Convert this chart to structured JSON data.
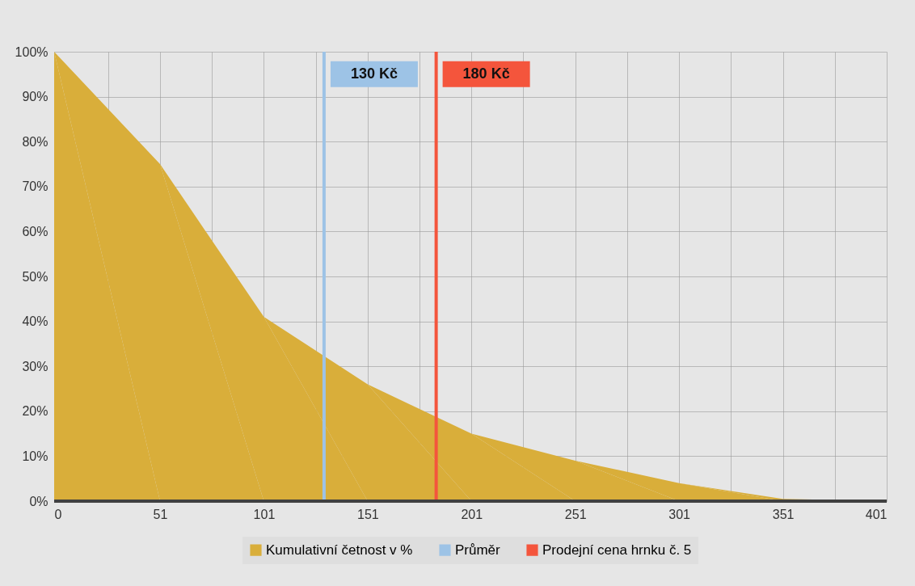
{
  "chart_data": {
    "type": "area",
    "xlim": [
      0,
      401
    ],
    "ylim": [
      0,
      100
    ],
    "xticks": [
      0,
      {
        "value": 26,
        "label": null
      },
      51,
      {
        "value": 76,
        "label": null
      },
      101,
      {
        "value": 126,
        "label": null
      },
      151,
      {
        "value": 176,
        "label": null
      },
      201,
      {
        "value": 226,
        "label": null
      },
      251,
      {
        "value": 276,
        "label": null
      },
      301,
      {
        "value": 326,
        "label": null
      },
      351,
      {
        "value": 376,
        "label": null
      },
      401
    ],
    "yticks": [
      {
        "value": 0,
        "label": "0%"
      },
      {
        "value": 10,
        "label": "10%"
      },
      {
        "value": 20,
        "label": "20%"
      },
      {
        "value": 30,
        "label": "30%"
      },
      {
        "value": 40,
        "label": "40%"
      },
      {
        "value": 50,
        "label": "50%"
      },
      {
        "value": 60,
        "label": "60%"
      },
      {
        "value": 70,
        "label": "70%"
      },
      {
        "value": 80,
        "label": "80%"
      },
      {
        "value": 90,
        "label": "90%"
      },
      {
        "value": 100,
        "label": "100%"
      }
    ],
    "grid": true,
    "legend": "bottom",
    "series": [
      {
        "name": "Kumulativní četnost v %",
        "color": "#d9ae3a",
        "x": [
          0,
          51,
          101,
          151,
          201,
          251,
          301,
          351,
          401
        ],
        "values": [
          100,
          75,
          41,
          26,
          15,
          9,
          4,
          0.5,
          0
        ]
      },
      {
        "name": "Průměr",
        "type": "line",
        "color": "#9dc3e6",
        "x": [
          130,
          130
        ],
        "values": [
          0,
          100
        ]
      },
      {
        "name": "Prodejní cena hrnku č. 5",
        "type": "line",
        "color": "#f4553c",
        "x": [
          184,
          184
        ],
        "values": [
          0,
          100
        ]
      }
    ],
    "annotations": [
      {
        "text": "130 Kč",
        "x": 130,
        "y": 95
      },
      {
        "text": "180 Kč",
        "x": 184,
        "y": 95
      }
    ]
  }
}
